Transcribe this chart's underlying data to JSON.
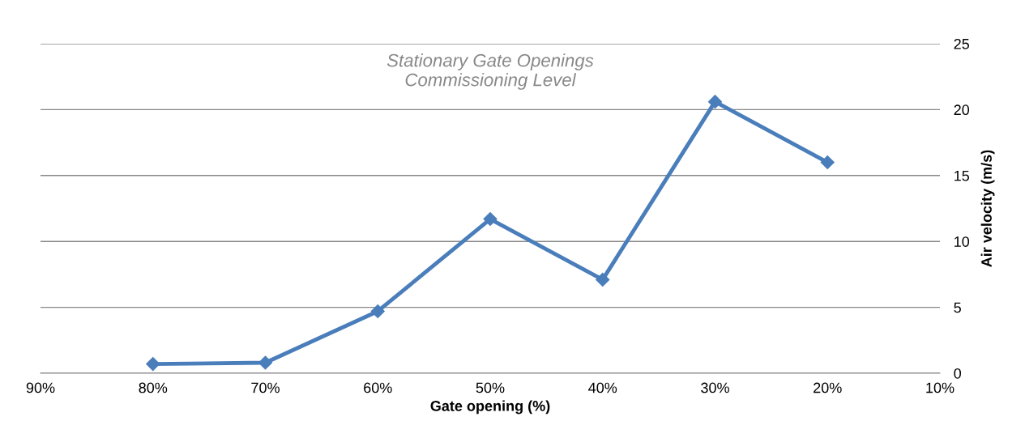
{
  "chart_data": {
    "type": "line",
    "title": "Stationary Gate Openings\nCommissioning Level",
    "xlabel": "Gate opening (%)",
    "ylabel": "Air velocity (m/s)",
    "x": [
      80,
      70,
      60,
      50,
      40,
      30,
      20
    ],
    "series": [
      {
        "color": "#4a7ebb",
        "values": [
          0.7,
          0.8,
          4.7,
          11.7,
          7.1,
          20.6,
          16.0
        ]
      }
    ],
    "xlim": [
      90,
      10
    ],
    "xticks": [
      {
        "value": 90,
        "label": "90%"
      },
      {
        "value": 80,
        "label": "80%"
      },
      {
        "value": 70,
        "label": "70%"
      },
      {
        "value": 60,
        "label": "60%"
      },
      {
        "value": 50,
        "label": "50%"
      },
      {
        "value": 40,
        "label": "40%"
      },
      {
        "value": 30,
        "label": "30%"
      },
      {
        "value": 20,
        "label": "20%"
      },
      {
        "value": 10,
        "label": "10%"
      }
    ],
    "ylim": [
      0,
      25
    ],
    "yticks": [
      0,
      5,
      10,
      15,
      20,
      25
    ],
    "grid": "y",
    "marker": "diamond",
    "line_style": "solid",
    "legend": false
  }
}
